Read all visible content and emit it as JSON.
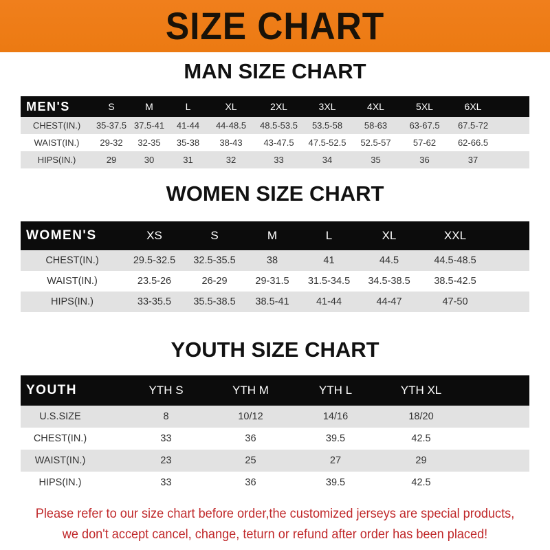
{
  "banner_title": "SIZE CHART",
  "men": {
    "title": "MAN SIZE CHART",
    "header": "MEN'S",
    "sizes": [
      "S",
      "M",
      "L",
      "XL",
      "2XL",
      "3XL",
      "4XL",
      "5XL",
      "6XL"
    ],
    "rows": [
      {
        "label": "CHEST(IN.)",
        "values": [
          "35-37.5",
          "37.5-41",
          "41-44",
          "44-48.5",
          "48.5-53.5",
          "53.5-58",
          "58-63",
          "63-67.5",
          "67.5-72"
        ]
      },
      {
        "label": "WAIST(IN.)",
        "values": [
          "29-32",
          "32-35",
          "35-38",
          "38-43",
          "43-47.5",
          "47.5-52.5",
          "52.5-57",
          "57-62",
          "62-66.5"
        ]
      },
      {
        "label": "HIPS(IN.)",
        "values": [
          "29",
          "30",
          "31",
          "32",
          "33",
          "34",
          "35",
          "36",
          "37"
        ]
      }
    ]
  },
  "women": {
    "title": "WOMEN SIZE CHART",
    "header": "WOMEN'S",
    "sizes": [
      "XS",
      "S",
      "M",
      "L",
      "XL",
      "XXL"
    ],
    "rows": [
      {
        "label": "CHEST(IN.)",
        "values": [
          "29.5-32.5",
          "32.5-35.5",
          "38",
          "41",
          "44.5",
          "44.5-48.5"
        ]
      },
      {
        "label": "WAIST(IN.)",
        "values": [
          "23.5-26",
          "26-29",
          "29-31.5",
          "31.5-34.5",
          "34.5-38.5",
          "38.5-42.5"
        ]
      },
      {
        "label": "HIPS(IN.)",
        "values": [
          "33-35.5",
          "35.5-38.5",
          "38.5-41",
          "41-44",
          "44-47",
          "47-50"
        ]
      }
    ]
  },
  "youth": {
    "title": "YOUTH SIZE CHART",
    "header": "YOUTH",
    "sizes": [
      "YTH S",
      "YTH M",
      "YTH L",
      "YTH XL"
    ],
    "rows": [
      {
        "label": "U.S.SIZE",
        "values": [
          "8",
          "10/12",
          "14/16",
          "18/20"
        ]
      },
      {
        "label": "CHEST(IN.)",
        "values": [
          "33",
          "36",
          "39.5",
          "42.5"
        ]
      },
      {
        "label": "WAIST(IN.)",
        "values": [
          "23",
          "25",
          "27",
          "29"
        ]
      },
      {
        "label": "HIPS(IN.)",
        "values": [
          "33",
          "36",
          "39.5",
          "42.5"
        ]
      }
    ]
  },
  "notice": {
    "line1": "Please refer to our size chart before order,the customized jerseys are special products,",
    "line2": "we don't accept cancel, change, teturn or refund after order has been placed!"
  },
  "colors": {
    "banner": "#ef7d18",
    "header_row": "#0c0c0c",
    "stripe": "#e2e2e2",
    "notice": "#c0282a"
  }
}
